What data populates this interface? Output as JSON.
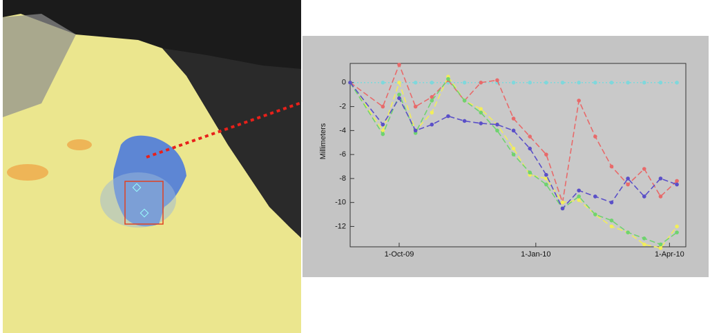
{
  "chart_data": {
    "type": "line",
    "y_label": "Millimeters",
    "x": [
      "2009-08-29",
      "2009-09-20",
      "2009-10-01",
      "2009-10-12",
      "2009-10-23",
      "2009-11-03",
      "2009-11-14",
      "2009-11-25",
      "2009-12-06",
      "2009-12-17",
      "2009-12-28",
      "2010-01-08",
      "2010-01-19",
      "2010-01-30",
      "2010-02-10",
      "2010-02-21",
      "2010-03-04",
      "2010-03-15",
      "2010-03-26",
      "2010-04-06"
    ],
    "xlim": [
      "2009-08-29",
      "2010-04-12"
    ],
    "xticks": [
      {
        "value": "2009-10-01",
        "label": "1-Oct-09"
      },
      {
        "value": "2010-01-01",
        "label": "1-Jan-10"
      },
      {
        "value": "2010-04-01",
        "label": "1-Apr-10"
      }
    ],
    "ylim": [
      -13.7,
      1.6
    ],
    "yticks": [
      0,
      -2,
      -4,
      -6,
      -8,
      -10,
      -12
    ],
    "series": [
      {
        "color": "#7fd8dc",
        "dash": "dotted",
        "values": [
          0,
          0,
          0,
          0,
          0,
          0,
          0,
          0,
          0,
          0,
          0,
          0,
          0,
          0,
          0,
          0,
          0,
          0,
          0,
          0
        ]
      },
      {
        "color": "#e86a6a",
        "dash": "dashed",
        "values": [
          0,
          -2,
          1.5,
          -2,
          -1.2,
          0.2,
          -1.5,
          0,
          0.2,
          -3,
          -4.5,
          -6,
          -10,
          -1.5,
          -4.5,
          -7,
          -8.5,
          -7.2,
          -9.5,
          -8.2
        ]
      },
      {
        "color": "#f2ee5a",
        "dash": "dashed",
        "values": [
          0,
          -4,
          0,
          -4,
          -2.5,
          0.5,
          -1.5,
          -2.2,
          -3.5,
          -5.5,
          -7.7,
          -8,
          -10,
          -9.8,
          -11,
          -12,
          -12.5,
          -13.5,
          -13.8,
          -12
        ]
      },
      {
        "color": "#6fd36f",
        "dash": "dashed",
        "values": [
          0,
          -4.3,
          -1,
          -4.2,
          -1.5,
          0.3,
          -1.5,
          -2.5,
          -4,
          -6,
          -7.5,
          -8.5,
          -10.5,
          -9.5,
          -11,
          -11.5,
          -12.5,
          -13,
          -13.5,
          -12.5
        ]
      },
      {
        "color": "#5a4fc8",
        "dash": "dashed",
        "values": [
          0,
          -3.5,
          -1.3,
          -4,
          -3.5,
          -2.8,
          -3.2,
          -3.4,
          -3.5,
          -4,
          -5.5,
          -7.7,
          -10.5,
          -9,
          -9.5,
          -10,
          -8,
          -9.5,
          -8,
          -8.5
        ]
      }
    ]
  }
}
